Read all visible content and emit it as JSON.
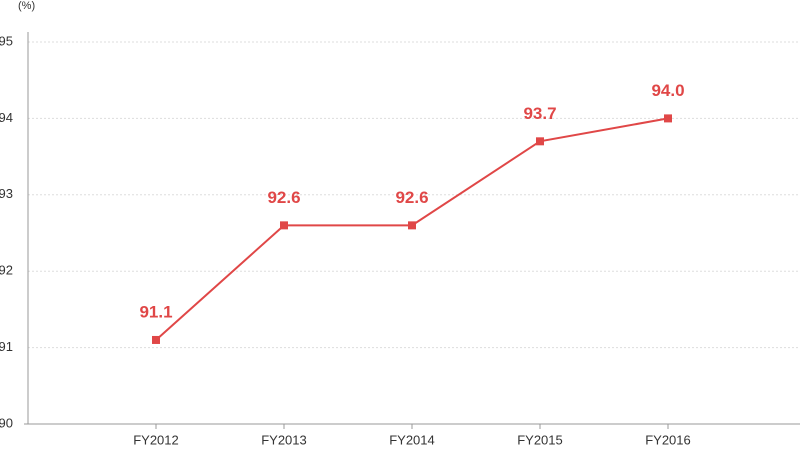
{
  "chart_data": {
    "type": "line",
    "unit_label": "(%)",
    "categories": [
      "FY2012",
      "FY2013",
      "FY2014",
      "FY2015",
      "FY2016"
    ],
    "series": [
      {
        "color": "#e04747",
        "values": [
          91.1,
          92.6,
          92.6,
          93.7,
          94
        ],
        "value_labels": [
          "91.1",
          "92.6",
          "92.6",
          "93.7",
          "94.0"
        ]
      }
    ],
    "ylim": [
      90,
      95
    ],
    "yticks": [
      90,
      91,
      92,
      93,
      94,
      95
    ],
    "grid": true
  }
}
